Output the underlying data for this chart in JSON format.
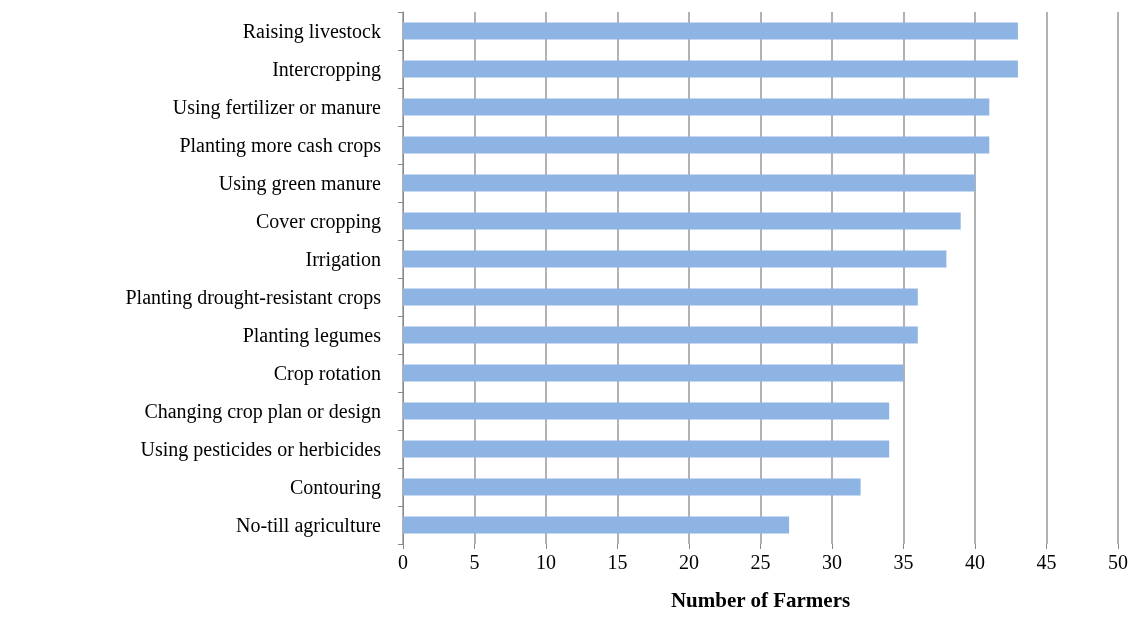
{
  "chart_data": {
    "type": "bar",
    "orientation": "horizontal",
    "xlabel": "Number of Farmers",
    "categories": [
      "Raising livestock",
      "Intercropping",
      "Using fertilizer or manure",
      "Planting more cash crops",
      "Using green manure",
      "Cover cropping",
      "Irrigation",
      "Planting drought-resistant crops",
      "Planting legumes",
      "Crop rotation",
      "Changing crop plan or design",
      "Using pesticides or herbicides",
      "Contouring",
      "No-till agriculture"
    ],
    "values": [
      43,
      43,
      41,
      41,
      40,
      39,
      38,
      36,
      36,
      35,
      34,
      34,
      32,
      27
    ],
    "color": "#8db4e3",
    "xlim": [
      0,
      50
    ],
    "xticks": [
      0,
      5,
      10,
      15,
      20,
      25,
      30,
      35,
      40,
      45,
      50
    ],
    "grid": "x"
  }
}
